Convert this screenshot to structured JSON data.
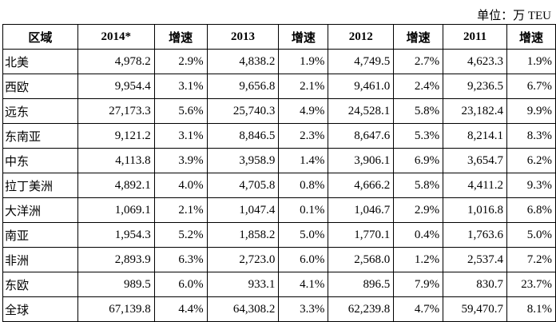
{
  "unit": "单位：万 TEU",
  "table": {
    "header": [
      "区域",
      "2014*",
      "增速",
      "2013",
      "增速",
      "2012",
      "增速",
      "2011",
      "增速"
    ],
    "rows": [
      [
        "北美",
        "4,978.2",
        "2.9%",
        "4,838.2",
        "1.9%",
        "4,749.5",
        "2.7%",
        "4,623.3",
        "1.9%"
      ],
      [
        "西欧",
        "9,954.4",
        "3.1%",
        "9,656.8",
        "2.1%",
        "9,461.0",
        "2.4%",
        "9,236.5",
        "6.7%"
      ],
      [
        "远东",
        "27,173.3",
        "5.6%",
        "25,740.3",
        "4.9%",
        "24,528.1",
        "5.8%",
        "23,182.4",
        "9.9%"
      ],
      [
        "东南亚",
        "9,121.2",
        "3.1%",
        "8,846.5",
        "2.3%",
        "8,647.6",
        "5.3%",
        "8,214.1",
        "8.3%"
      ],
      [
        "中东",
        "4,113.8",
        "3.9%",
        "3,958.9",
        "1.4%",
        "3,906.1",
        "6.9%",
        "3,654.7",
        "6.2%"
      ],
      [
        "拉丁美洲",
        "4,892.1",
        "4.0%",
        "4,705.8",
        "0.8%",
        "4,666.2",
        "5.8%",
        "4,411.2",
        "9.3%"
      ],
      [
        "大洋洲",
        "1,069.1",
        "2.1%",
        "1,047.4",
        "0.1%",
        "1,046.7",
        "2.9%",
        "1,016.8",
        "6.8%"
      ],
      [
        "南亚",
        "1,954.3",
        "5.2%",
        "1,858.2",
        "5.0%",
        "1,770.1",
        "0.4%",
        "1,763.6",
        "5.0%"
      ],
      [
        "非洲",
        "2,893.9",
        "6.3%",
        "2,723.0",
        "6.0%",
        "2,568.0",
        "1.2%",
        "2,537.4",
        "7.2%"
      ],
      [
        "东欧",
        "989.5",
        "6.0%",
        "933.1",
        "4.1%",
        "896.5",
        "7.9%",
        "830.7",
        "23.7%"
      ],
      [
        "全球",
        "67,139.8",
        "4.4%",
        "64,308.2",
        "3.3%",
        "62,239.8",
        "4.7%",
        "59,470.7",
        "8.1%"
      ]
    ]
  }
}
